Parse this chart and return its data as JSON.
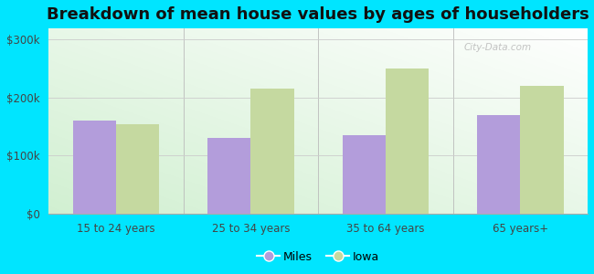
{
  "title": "Breakdown of mean house values by ages of householders",
  "categories": [
    "15 to 24 years",
    "25 to 34 years",
    "35 to 64 years",
    "65 years+"
  ],
  "miles_values": [
    160000,
    130000,
    135000,
    170000
  ],
  "iowa_values": [
    155000,
    215000,
    250000,
    220000
  ],
  "miles_color": "#b39ddb",
  "iowa_color": "#c5d9a0",
  "outer_background": "#00e5ff",
  "yticks": [
    0,
    100000,
    200000,
    300000
  ],
  "ytick_labels": [
    "$0",
    "$100k",
    "$200k",
    "$300k"
  ],
  "ylim": [
    0,
    320000
  ],
  "legend_labels": [
    "Miles",
    "Iowa"
  ],
  "watermark": "City-Data.com",
  "bar_width": 0.32,
  "title_fontsize": 13,
  "tick_fontsize": 8.5,
  "legend_fontsize": 9
}
